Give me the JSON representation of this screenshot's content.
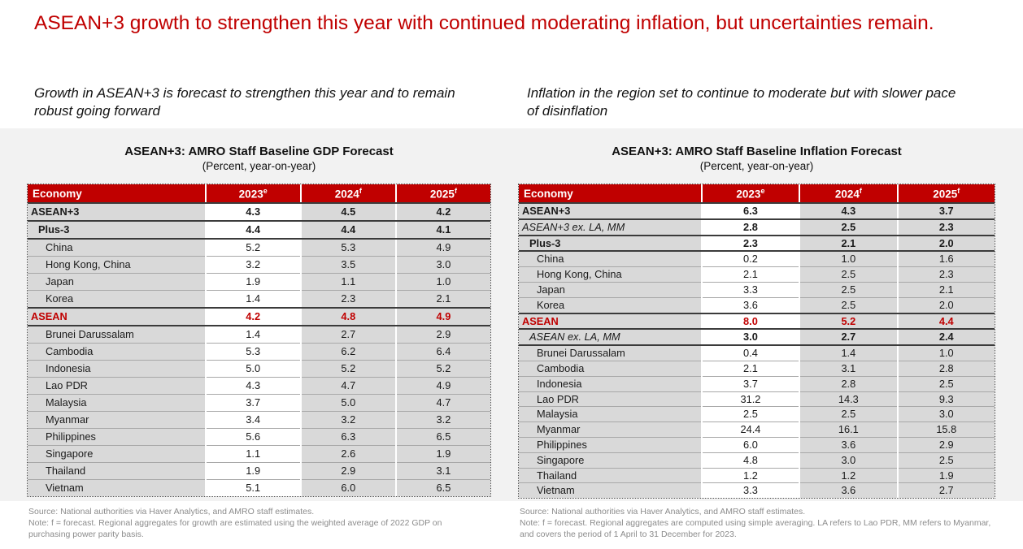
{
  "slide": {
    "headline": "ASEAN+3 growth to strengthen this year with continued moderating inflation, but uncertainties remain.",
    "left_takeaway": "Growth in ASEAN+3 is forecast to strengthen this year and to remain robust going forward",
    "right_takeaway": "Inflation in the region set to continue to moderate but with slower pace of disinflation",
    "accent_color": "#C00000",
    "panel_color": "#F2F2F2",
    "cell_gray": "#D9D9D9"
  },
  "tables": [
    {
      "title": "ASEAN+3: AMRO Staff Baseline GDP Forecast",
      "subtitle": "(Percent, year-on-year)",
      "columns": [
        {
          "label": "Economy",
          "sup": ""
        },
        {
          "label": "2023",
          "sup": "e"
        },
        {
          "label": "2024",
          "sup": "f"
        },
        {
          "label": "2025",
          "sup": "f"
        }
      ],
      "rows": [
        {
          "label": "ASEAN+3",
          "values": [
            "4.3",
            "4.5",
            "4.2"
          ],
          "style": "group",
          "indent": 0,
          "sep": true
        },
        {
          "label": "Plus-3",
          "values": [
            "4.4",
            "4.4",
            "4.1"
          ],
          "style": "group",
          "indent": 1,
          "sep": true
        },
        {
          "label": "China",
          "values": [
            "5.2",
            "5.3",
            "4.9"
          ],
          "style": "country",
          "indent": 2,
          "sep": false
        },
        {
          "label": "Hong Kong, China",
          "values": [
            "3.2",
            "3.5",
            "3.0"
          ],
          "style": "country",
          "indent": 2,
          "sep": false
        },
        {
          "label": "Japan",
          "values": [
            "1.9",
            "1.1",
            "1.0"
          ],
          "style": "country",
          "indent": 2,
          "sep": false
        },
        {
          "label": "Korea",
          "values": [
            "1.4",
            "2.3",
            "2.1"
          ],
          "style": "country",
          "indent": 2,
          "sep": true
        },
        {
          "label": "ASEAN",
          "values": [
            "4.2",
            "4.8",
            "4.9"
          ],
          "style": "asean",
          "indent": 0,
          "sep": true
        },
        {
          "label": "Brunei Darussalam",
          "values": [
            "1.4",
            "2.7",
            "2.9"
          ],
          "style": "country",
          "indent": 2,
          "sep": false
        },
        {
          "label": "Cambodia",
          "values": [
            "5.3",
            "6.2",
            "6.4"
          ],
          "style": "country",
          "indent": 2,
          "sep": false
        },
        {
          "label": "Indonesia",
          "values": [
            "5.0",
            "5.2",
            "5.2"
          ],
          "style": "country",
          "indent": 2,
          "sep": false
        },
        {
          "label": "Lao PDR",
          "values": [
            "4.3",
            "4.7",
            "4.9"
          ],
          "style": "country",
          "indent": 2,
          "sep": false
        },
        {
          "label": "Malaysia",
          "values": [
            "3.7",
            "5.0",
            "4.7"
          ],
          "style": "country",
          "indent": 2,
          "sep": false
        },
        {
          "label": "Myanmar",
          "values": [
            "3.4",
            "3.2",
            "3.2"
          ],
          "style": "country",
          "indent": 2,
          "sep": false
        },
        {
          "label": "Philippines",
          "values": [
            "5.6",
            "6.3",
            "6.5"
          ],
          "style": "country",
          "indent": 2,
          "sep": false
        },
        {
          "label": "Singapore",
          "values": [
            "1.1",
            "2.6",
            "1.9"
          ],
          "style": "country",
          "indent": 2,
          "sep": false
        },
        {
          "label": "Thailand",
          "values": [
            "1.9",
            "2.9",
            "3.1"
          ],
          "style": "country",
          "indent": 2,
          "sep": false
        },
        {
          "label": "Vietnam",
          "values": [
            "5.1",
            "6.0",
            "6.5"
          ],
          "style": "country",
          "indent": 2,
          "sep": false
        }
      ],
      "source": "Source: National authorities via Haver Analytics, and AMRO staff estimates.",
      "note": "Note: f = forecast. Regional aggregates for growth are estimated using the weighted average of 2022 GDP on purchasing power parity basis."
    },
    {
      "title": "ASEAN+3: AMRO Staff Baseline Inflation Forecast",
      "subtitle": "(Percent, year-on-year)",
      "columns": [
        {
          "label": "Economy",
          "sup": ""
        },
        {
          "label": "2023",
          "sup": "e"
        },
        {
          "label": "2024",
          "sup": "f"
        },
        {
          "label": "2025",
          "sup": "f"
        }
      ],
      "rows": [
        {
          "label": "ASEAN+3",
          "values": [
            "6.3",
            "4.3",
            "3.7"
          ],
          "style": "group",
          "indent": 0,
          "sep": true
        },
        {
          "label": "ASEAN+3 ex. LA, MM",
          "values": [
            "2.8",
            "2.5",
            "2.3"
          ],
          "style": "gitalic",
          "indent": 0,
          "sep": true
        },
        {
          "label": "Plus-3",
          "values": [
            "2.3",
            "2.1",
            "2.0"
          ],
          "style": "group",
          "indent": 1,
          "sep": true
        },
        {
          "label": "China",
          "values": [
            "0.2",
            "1.0",
            "1.6"
          ],
          "style": "country",
          "indent": 2,
          "sep": false
        },
        {
          "label": "Hong Kong, China",
          "values": [
            "2.1",
            "2.5",
            "2.3"
          ],
          "style": "country",
          "indent": 2,
          "sep": false
        },
        {
          "label": "Japan",
          "values": [
            "3.3",
            "2.5",
            "2.1"
          ],
          "style": "country",
          "indent": 2,
          "sep": false
        },
        {
          "label": "Korea",
          "values": [
            "3.6",
            "2.5",
            "2.0"
          ],
          "style": "country",
          "indent": 2,
          "sep": true
        },
        {
          "label": "ASEAN",
          "values": [
            "8.0",
            "5.2",
            "4.4"
          ],
          "style": "asean",
          "indent": 0,
          "sep": true
        },
        {
          "label": "ASEAN ex. LA, MM",
          "values": [
            "3.0",
            "2.7",
            "2.4"
          ],
          "style": "gitalic",
          "indent": 1,
          "sep": true
        },
        {
          "label": "Brunei Darussalam",
          "values": [
            "0.4",
            "1.4",
            "1.0"
          ],
          "style": "country",
          "indent": 2,
          "sep": false
        },
        {
          "label": "Cambodia",
          "values": [
            "2.1",
            "3.1",
            "2.8"
          ],
          "style": "country",
          "indent": 2,
          "sep": false
        },
        {
          "label": "Indonesia",
          "values": [
            "3.7",
            "2.8",
            "2.5"
          ],
          "style": "country",
          "indent": 2,
          "sep": false
        },
        {
          "label": "Lao PDR",
          "values": [
            "31.2",
            "14.3",
            "9.3"
          ],
          "style": "country",
          "indent": 2,
          "sep": false
        },
        {
          "label": "Malaysia",
          "values": [
            "2.5",
            "2.5",
            "3.0"
          ],
          "style": "country",
          "indent": 2,
          "sep": false
        },
        {
          "label": "Myanmar",
          "values": [
            "24.4",
            "16.1",
            "15.8"
          ],
          "style": "country",
          "indent": 2,
          "sep": false
        },
        {
          "label": "Philippines",
          "values": [
            "6.0",
            "3.6",
            "2.9"
          ],
          "style": "country",
          "indent": 2,
          "sep": false
        },
        {
          "label": "Singapore",
          "values": [
            "4.8",
            "3.0",
            "2.5"
          ],
          "style": "country",
          "indent": 2,
          "sep": false
        },
        {
          "label": "Thailand",
          "values": [
            "1.2",
            "1.2",
            "1.9"
          ],
          "style": "country",
          "indent": 2,
          "sep": false
        },
        {
          "label": "Vietnam",
          "values": [
            "3.3",
            "3.6",
            "2.7"
          ],
          "style": "country",
          "indent": 2,
          "sep": false
        }
      ],
      "source": "Source: National authorities via Haver Analytics, and AMRO staff estimates.",
      "note": "Note: f = forecast. Regional aggregates are computed using simple averaging. LA refers to Lao PDR, MM refers to Myanmar, and covers the period of 1 April to 31 December for 2023."
    }
  ]
}
